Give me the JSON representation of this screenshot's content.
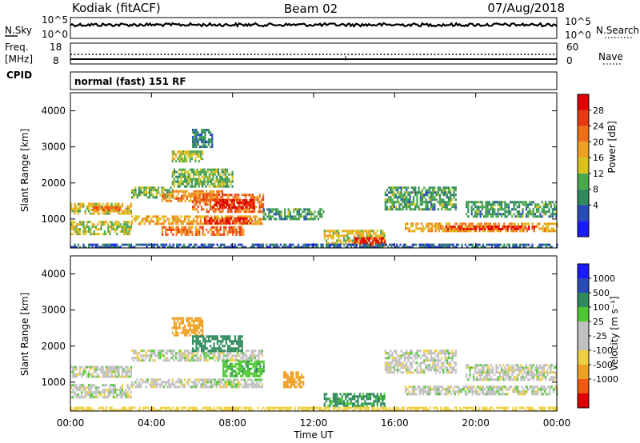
{
  "header": {
    "station": "Kodiak (fitACF)",
    "beam": "Beam 02",
    "date": "07/Aug/2018"
  },
  "noise_panel": {
    "left_label": "N.Sky",
    "left_ticks": [
      "10^5",
      "10^0"
    ],
    "right_label": "N.Search",
    "right_ticks": [
      "10^5",
      "10^0"
    ]
  },
  "freq_panel": {
    "left_label_line1": "Freq.",
    "left_label_line2": "[MHz]",
    "left_ticks": [
      "18",
      "8"
    ],
    "right_label": "Nave",
    "right_ticks": [
      "60",
      "0"
    ]
  },
  "cpid_panel": {
    "label": "CPID",
    "text": "normal (fast) 151 RF"
  },
  "colors": {
    "power_scale": [
      "#1a1aff",
      "#2a4ab8",
      "#2e8a5a",
      "#4aa84a",
      "#d9c21a",
      "#f0a020",
      "#f07018",
      "#e83a10",
      "#e00000"
    ],
    "velocity_scale": [
      "#e00000",
      "#f05a10",
      "#f0a020",
      "#f0d040",
      "#c0c0c0",
      "#c0c0c0",
      "#4ec832",
      "#2e8a5a",
      "#2a4ab8",
      "#1a1aff"
    ]
  },
  "chart_data": [
    {
      "type": "heatmap",
      "panel": "power",
      "ylabel": "Slant Range [km]",
      "ylim": [
        200,
        4500
      ],
      "y_ticks": [
        "4000",
        "3000",
        "2000",
        "1000"
      ],
      "x_ticks": [
        "00:00",
        "04:00",
        "08:00",
        "12:00",
        "16:00",
        "20:00",
        "00:00"
      ],
      "xlim_hours": [
        0,
        24
      ],
      "colorbar_label": "Power [dB]",
      "colorbar_ticks": [
        "28",
        "24",
        "20",
        "16",
        "12",
        "8",
        "4"
      ],
      "colorbar_range": [
        0,
        30
      ],
      "patches": [
        {
          "t": [
            0.0,
            3.0
          ],
          "r": [
            1150,
            1450
          ],
          "v": 16
        },
        {
          "t": [
            0.0,
            3.0
          ],
          "r": [
            600,
            950
          ],
          "v": 14
        },
        {
          "t": [
            1.0,
            2.5
          ],
          "r": [
            1250,
            1350
          ],
          "v": 22
        },
        {
          "t": [
            3.0,
            5.0
          ],
          "r": [
            1600,
            1900
          ],
          "v": 12
        },
        {
          "t": [
            4.5,
            7.5
          ],
          "r": [
            1500,
            1800
          ],
          "v": 20
        },
        {
          "t": [
            6.0,
            9.5
          ],
          "r": [
            1200,
            1700
          ],
          "v": 22
        },
        {
          "t": [
            7.0,
            9.0
          ],
          "r": [
            1300,
            1550
          ],
          "v": 28
        },
        {
          "t": [
            5.0,
            8.0
          ],
          "r": [
            1900,
            2400
          ],
          "v": 12
        },
        {
          "t": [
            5.0,
            6.5
          ],
          "r": [
            2600,
            2900
          ],
          "v": 14
        },
        {
          "t": [
            6.0,
            7.0
          ],
          "r": [
            3000,
            3500
          ],
          "v": 8
        },
        {
          "t": [
            3.0,
            9.5
          ],
          "r": [
            850,
            1100
          ],
          "v": 18
        },
        {
          "t": [
            6.5,
            9.0
          ],
          "r": [
            900,
            1050
          ],
          "v": 26
        },
        {
          "t": [
            4.5,
            8.5
          ],
          "r": [
            600,
            800
          ],
          "v": 22
        },
        {
          "t": [
            9.5,
            12.5
          ],
          "r": [
            1000,
            1300
          ],
          "v": 10
        },
        {
          "t": [
            12.5,
            15.5
          ],
          "r": [
            350,
            700
          ],
          "v": 16
        },
        {
          "t": [
            14.0,
            15.5
          ],
          "r": [
            300,
            500
          ],
          "v": 28
        },
        {
          "t": [
            15.5,
            19.0
          ],
          "r": [
            1300,
            1900
          ],
          "v": 10
        },
        {
          "t": [
            16.5,
            24.0
          ],
          "r": [
            650,
            900
          ],
          "v": 18
        },
        {
          "t": [
            18.5,
            23.0
          ],
          "r": [
            700,
            820
          ],
          "v": 26
        },
        {
          "t": [
            19.5,
            24.0
          ],
          "r": [
            1100,
            1500
          ],
          "v": 10
        },
        {
          "t": [
            0.0,
            24.0
          ],
          "r": [
            200,
            320
          ],
          "v": 6
        }
      ]
    },
    {
      "type": "heatmap",
      "panel": "velocity",
      "ylabel": "Slant Range [km]",
      "ylim": [
        200,
        4500
      ],
      "y_ticks": [
        "4000",
        "3000",
        "2000",
        "1000"
      ],
      "x_ticks": [
        "00:00",
        "04:00",
        "08:00",
        "12:00",
        "16:00",
        "20:00",
        "00:00"
      ],
      "xlim_hours": [
        0,
        24
      ],
      "xlabel": "Time UT",
      "colorbar_label": "Velocity [m s⁻¹]",
      "colorbar_ticks": [
        "1000",
        "500",
        "100",
        "25",
        "-25",
        "-100",
        "-500",
        "-1000"
      ],
      "patches": [
        {
          "t": [
            0.0,
            3.0
          ],
          "r": [
            1150,
            1450
          ],
          "v": 0
        },
        {
          "t": [
            0.0,
            3.0
          ],
          "r": [
            600,
            950
          ],
          "v": 0
        },
        {
          "t": [
            3.0,
            9.5
          ],
          "r": [
            1600,
            1900
          ],
          "v": 0
        },
        {
          "t": [
            5.0,
            6.5
          ],
          "r": [
            2300,
            2800
          ],
          "v": -200
        },
        {
          "t": [
            6.0,
            8.5
          ],
          "r": [
            1900,
            2300
          ],
          "v": 150
        },
        {
          "t": [
            7.5,
            9.5
          ],
          "r": [
            1200,
            1600
          ],
          "v": 80
        },
        {
          "t": [
            3.0,
            9.5
          ],
          "r": [
            850,
            1100
          ],
          "v": 0
        },
        {
          "t": [
            10.5,
            11.5
          ],
          "r": [
            900,
            1300
          ],
          "v": -150
        },
        {
          "t": [
            12.5,
            15.5
          ],
          "r": [
            350,
            700
          ],
          "v": 120
        },
        {
          "t": [
            15.5,
            19.0
          ],
          "r": [
            1300,
            1900
          ],
          "v": 0
        },
        {
          "t": [
            16.5,
            24.0
          ],
          "r": [
            650,
            900
          ],
          "v": 0
        },
        {
          "t": [
            19.5,
            24.0
          ],
          "r": [
            1100,
            1500
          ],
          "v": 0
        },
        {
          "t": [
            0.0,
            24.0
          ],
          "r": [
            200,
            320
          ],
          "v": -60
        }
      ]
    }
  ]
}
